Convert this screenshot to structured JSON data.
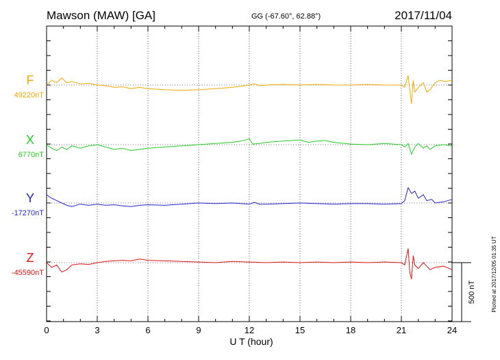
{
  "header": {
    "station": "Mawson (MAW)  [GA]",
    "coords": "GG (-67.60°,  62.88°)",
    "date": "2017/11/04"
  },
  "footer": {
    "plotted": "Plotted at 2017/12/05 01:35 UT"
  },
  "chart_data": {
    "type": "line",
    "xlabel": "U T (hour)",
    "xlim": [
      0,
      24
    ],
    "xticks": [
      0,
      3,
      6,
      9,
      12,
      15,
      18,
      21,
      24
    ],
    "grid": true,
    "scale_bar": {
      "label": "500 nT",
      "value_nT": 500
    },
    "series": [
      {
        "name": "F",
        "baseline_label": "49220nT",
        "baseline_nT": 49220,
        "color": "#f5a800",
        "points": [
          [
            0,
            0
          ],
          [
            0.3,
            40
          ],
          [
            0.6,
            20
          ],
          [
            0.9,
            60
          ],
          [
            1.2,
            20
          ],
          [
            1.5,
            30
          ],
          [
            2,
            10
          ],
          [
            2.5,
            15
          ],
          [
            3,
            0
          ],
          [
            3.5,
            -5
          ],
          [
            4,
            -20
          ],
          [
            4.5,
            -15
          ],
          [
            5,
            -30
          ],
          [
            5.5,
            -20
          ],
          [
            6,
            -30
          ],
          [
            7,
            -40
          ],
          [
            8,
            -45
          ],
          [
            9,
            -40
          ],
          [
            10,
            -30
          ],
          [
            11,
            -20
          ],
          [
            11.5,
            -10
          ],
          [
            12,
            0
          ],
          [
            12.3,
            10
          ],
          [
            12.6,
            -5
          ],
          [
            13,
            0
          ],
          [
            14,
            5
          ],
          [
            15,
            0
          ],
          [
            16,
            5
          ],
          [
            17,
            0
          ],
          [
            18,
            0
          ],
          [
            19,
            5
          ],
          [
            20,
            0
          ],
          [
            21,
            0
          ],
          [
            21.2,
            -20
          ],
          [
            21.4,
            80
          ],
          [
            21.5,
            -40
          ],
          [
            21.6,
            -160
          ],
          [
            21.7,
            40
          ],
          [
            21.8,
            -60
          ],
          [
            22,
            -20
          ],
          [
            22.3,
            20
          ],
          [
            22.5,
            -60
          ],
          [
            22.7,
            -40
          ],
          [
            23,
            20
          ],
          [
            23.3,
            40
          ],
          [
            23.6,
            30
          ],
          [
            24,
            40
          ]
        ]
      },
      {
        "name": "X",
        "baseline_label": "6770nT",
        "baseline_nT": 6770,
        "color": "#22cc22",
        "points": [
          [
            0,
            0
          ],
          [
            0.3,
            -30
          ],
          [
            0.6,
            -50
          ],
          [
            0.9,
            -20
          ],
          [
            1.2,
            -40
          ],
          [
            1.5,
            -10
          ],
          [
            2,
            -30
          ],
          [
            2.5,
            -10
          ],
          [
            3,
            0
          ],
          [
            3.5,
            -20
          ],
          [
            4,
            -40
          ],
          [
            4.5,
            -30
          ],
          [
            5,
            -50
          ],
          [
            5.5,
            -40
          ],
          [
            6,
            -30
          ],
          [
            7,
            -20
          ],
          [
            8,
            -10
          ],
          [
            9,
            0
          ],
          [
            10,
            10
          ],
          [
            11,
            20
          ],
          [
            11.5,
            30
          ],
          [
            12,
            50
          ],
          [
            12.2,
            5
          ],
          [
            12.6,
            10
          ],
          [
            13,
            20
          ],
          [
            14,
            30
          ],
          [
            15,
            40
          ],
          [
            15.5,
            20
          ],
          [
            16,
            30
          ],
          [
            16.5,
            35
          ],
          [
            17,
            20
          ],
          [
            18,
            5
          ],
          [
            19,
            0
          ],
          [
            20,
            10
          ],
          [
            21,
            0
          ],
          [
            21.2,
            -20
          ],
          [
            21.4,
            10
          ],
          [
            21.6,
            -80
          ],
          [
            21.8,
            -20
          ],
          [
            22,
            10
          ],
          [
            22.3,
            -30
          ],
          [
            22.5,
            -10
          ],
          [
            22.7,
            -40
          ],
          [
            23,
            -10
          ],
          [
            23.5,
            0
          ],
          [
            24,
            -10
          ]
        ]
      },
      {
        "name": "Y",
        "baseline_label": "-17270nT",
        "baseline_nT": -17270,
        "color": "#2222cc",
        "points": [
          [
            0,
            70
          ],
          [
            0.3,
            40
          ],
          [
            0.6,
            20
          ],
          [
            0.9,
            0
          ],
          [
            1.2,
            -20
          ],
          [
            1.5,
            -30
          ],
          [
            2,
            -10
          ],
          [
            2.5,
            -20
          ],
          [
            3,
            -10
          ],
          [
            3.5,
            -20
          ],
          [
            4,
            -15
          ],
          [
            4.5,
            -25
          ],
          [
            5,
            -30
          ],
          [
            5.5,
            -20
          ],
          [
            6,
            -15
          ],
          [
            7,
            -20
          ],
          [
            8,
            -10
          ],
          [
            9,
            0
          ],
          [
            10,
            -5
          ],
          [
            11,
            0
          ],
          [
            12,
            -10
          ],
          [
            12.3,
            5
          ],
          [
            12.6,
            -10
          ],
          [
            13,
            -10
          ],
          [
            14,
            -5
          ],
          [
            15,
            0
          ],
          [
            16,
            -5
          ],
          [
            17,
            -10
          ],
          [
            18,
            -5
          ],
          [
            19,
            -5
          ],
          [
            20,
            -10
          ],
          [
            21,
            -5
          ],
          [
            21.2,
            20
          ],
          [
            21.4,
            130
          ],
          [
            21.6,
            80
          ],
          [
            21.8,
            100
          ],
          [
            22,
            40
          ],
          [
            22.3,
            70
          ],
          [
            22.5,
            20
          ],
          [
            22.8,
            30
          ],
          [
            23,
            0
          ],
          [
            23.5,
            10
          ],
          [
            24,
            30
          ]
        ]
      },
      {
        "name": "Z",
        "baseline_label": "-45590nT",
        "baseline_nT": -45590,
        "color": "#dd1111",
        "points": [
          [
            0,
            0
          ],
          [
            0.3,
            -40
          ],
          [
            0.6,
            -20
          ],
          [
            0.9,
            -80
          ],
          [
            1.2,
            -60
          ],
          [
            1.5,
            -20
          ],
          [
            2,
            -10
          ],
          [
            2.5,
            -15
          ],
          [
            3,
            0
          ],
          [
            3.5,
            10
          ],
          [
            4,
            15
          ],
          [
            4.5,
            20
          ],
          [
            5,
            15
          ],
          [
            5.5,
            30
          ],
          [
            6,
            20
          ],
          [
            7,
            15
          ],
          [
            8,
            10
          ],
          [
            9,
            5
          ],
          [
            10,
            0
          ],
          [
            11,
            10
          ],
          [
            12,
            5
          ],
          [
            13,
            0
          ],
          [
            14,
            5
          ],
          [
            15,
            0
          ],
          [
            16,
            5
          ],
          [
            17,
            0
          ],
          [
            18,
            5
          ],
          [
            19,
            0
          ],
          [
            20,
            5
          ],
          [
            21,
            0
          ],
          [
            21.2,
            -20
          ],
          [
            21.4,
            120
          ],
          [
            21.5,
            -80
          ],
          [
            21.6,
            -140
          ],
          [
            21.7,
            60
          ],
          [
            21.8,
            -20
          ],
          [
            22,
            -50
          ],
          [
            22.3,
            0
          ],
          [
            22.5,
            -30
          ],
          [
            22.7,
            -60
          ],
          [
            23,
            -40
          ],
          [
            23.5,
            -30
          ],
          [
            24,
            -60
          ]
        ]
      }
    ]
  }
}
